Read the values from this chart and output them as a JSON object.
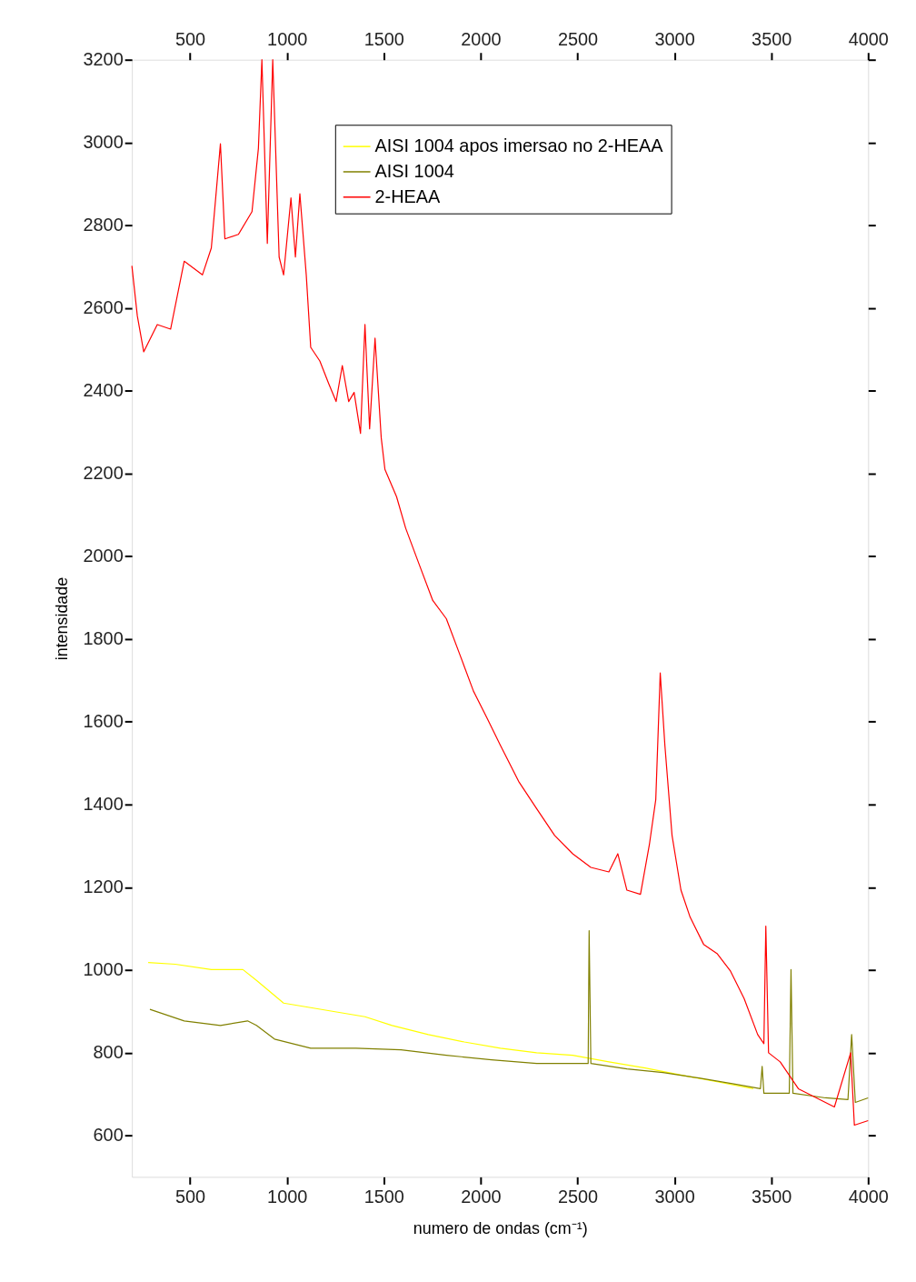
{
  "chart_data": {
    "type": "line",
    "xlabel": "numero de ondas (cm⁻¹)",
    "ylabel": "intensidade",
    "xlim": [
      200,
      4000
    ],
    "xticks": [
      500,
      1000,
      1500,
      2000,
      2500,
      3000,
      3500,
      4000
    ],
    "x2lim": [
      200,
      4000
    ],
    "x2ticks": [
      500,
      1000,
      1500,
      2000,
      2500,
      3000,
      3500,
      4000
    ],
    "ylim": [
      500,
      3200
    ],
    "yticks": [
      600,
      800,
      1000,
      1200,
      1400,
      1600,
      1800,
      2000,
      2200,
      2400,
      2600,
      2800,
      3000,
      3200
    ],
    "grid": false,
    "legend": "top right",
    "marker": "none",
    "line_style": "solid",
    "series": [
      {
        "name": "AISI 1004 apos imersao no 2-HEAA",
        "color": "#ffff00",
        "x": [
          284,
          424,
          610,
          773,
          843,
          983,
          1123,
          1263,
          1403,
          1543,
          1730,
          1916,
          2102,
          2289,
          2475,
          2662,
          2849,
          3034,
          3220,
          3407
        ],
        "values": [
          1018,
          1014,
          1001,
          1001,
          975,
          920,
          909,
          898,
          887,
          866,
          844,
          826,
          811,
          800,
          794,
          778,
          763,
          746,
          730,
          713
        ]
      },
      {
        "name": "AISI 1004",
        "color": "#808000",
        "x": [
          293,
          470,
          657,
          797,
          843,
          936,
          1123,
          1356,
          1589,
          1823,
          2056,
          2289,
          2555,
          2560,
          2569,
          2755,
          2941,
          3127,
          3313,
          3444,
          3453,
          3462,
          3593,
          3602,
          3612,
          3780,
          3896,
          3915,
          3934,
          4000
        ],
        "values": [
          905,
          877,
          866,
          877,
          866,
          833,
          811,
          811,
          807,
          794,
          783,
          774,
          774,
          1095,
          774,
          761,
          752,
          739,
          724,
          713,
          767,
          702,
          702,
          1001,
          702,
          691,
          687,
          844,
          680,
          691
        ]
      },
      {
        "name": "2-HEAA",
        "color": "#ff0000",
        "x": [
          200,
          228,
          261,
          331,
          400,
          470,
          564,
          610,
          657,
          680,
          750,
          820,
          853,
          871,
          899,
          927,
          960,
          983,
          1021,
          1044,
          1067,
          1100,
          1123,
          1170,
          1216,
          1254,
          1286,
          1319,
          1347,
          1380,
          1403,
          1427,
          1455,
          1487,
          1506,
          1566,
          1613,
          1683,
          1753,
          1823,
          1893,
          1963,
          2033,
          2102,
          2196,
          2289,
          2382,
          2475,
          2569,
          2662,
          2708,
          2755,
          2825,
          2871,
          2904,
          2927,
          2951,
          2988,
          3034,
          3081,
          3151,
          3220,
          3290,
          3360,
          3430,
          3462,
          3472,
          3486,
          3546,
          3640,
          3733,
          3826,
          3910,
          3929,
          4000
        ],
        "values": [
          2702,
          2581,
          2494,
          2560,
          2549,
          2713,
          2680,
          2745,
          2997,
          2767,
          2778,
          2833,
          2986,
          3200,
          2756,
          3200,
          2723,
          2680,
          2866,
          2723,
          2876,
          2680,
          2505,
          2472,
          2417,
          2374,
          2461,
          2374,
          2396,
          2297,
          2560,
          2308,
          2527,
          2286,
          2210,
          2144,
          2068,
          1980,
          1893,
          1849,
          1762,
          1674,
          1609,
          1543,
          1456,
          1390,
          1325,
          1281,
          1248,
          1237,
          1281,
          1193,
          1183,
          1303,
          1412,
          1718,
          1543,
          1325,
          1193,
          1128,
          1062,
          1040,
          997,
          931,
          844,
          822,
          1106,
          800,
          778,
          713,
          691,
          669,
          800,
          625,
          636
        ]
      }
    ]
  }
}
